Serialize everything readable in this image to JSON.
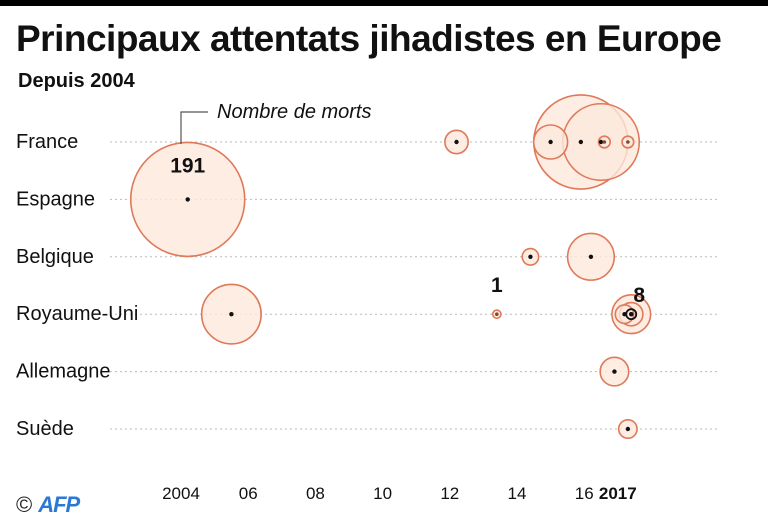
{
  "header": {
    "title": "Principaux attentats jihadistes en Europe",
    "subtitle": "Depuis 2004"
  },
  "credit": {
    "copyright_symbol": "©",
    "logo_text": "AFP"
  },
  "colors": {
    "bubble_fill": "#fde8dc",
    "bubble_stroke": "#e0795a",
    "text": "#111111",
    "grid_dots": "#bbbbbb"
  },
  "chart_data": {
    "type": "scatter",
    "size_encoding": "Nombre de morts",
    "size_legend_label": "Nombre de morts",
    "x_ticks": [
      {
        "year": 2004,
        "label": "2004"
      },
      {
        "year": 2006,
        "label": "06"
      },
      {
        "year": 2008,
        "label": "08"
      },
      {
        "year": 2010,
        "label": "10"
      },
      {
        "year": 2012,
        "label": "12"
      },
      {
        "year": 2014,
        "label": "14"
      },
      {
        "year": 2016,
        "label": "16"
      },
      {
        "year": 2017,
        "label": "2017"
      }
    ],
    "xlim": [
      2004,
      2017.6
    ],
    "rows": [
      "France",
      "Espagne",
      "Belgique",
      "Royaume-Uni",
      "Allemagne",
      "Suède"
    ],
    "grid": "dotted horizontal lines per country",
    "annotations": [
      {
        "label": "191",
        "country": "Espagne",
        "x": 2004.2
      },
      {
        "label": "1",
        "country": "Royaume-Uni",
        "x": 2013.4
      },
      {
        "label": "8",
        "country": "Royaume-Uni",
        "x": 2017.4
      }
    ],
    "points": [
      {
        "country": "France",
        "x": 2012.2,
        "value": 8
      },
      {
        "country": "France",
        "x": 2015.0,
        "value": 17
      },
      {
        "country": "France",
        "x": 2015.9,
        "value": 130
      },
      {
        "country": "France",
        "x": 2016.5,
        "value": 86
      },
      {
        "country": "France",
        "x": 2016.6,
        "value": 2
      },
      {
        "country": "France",
        "x": 2017.3,
        "value": 2
      },
      {
        "country": "Espagne",
        "x": 2004.2,
        "value": 191
      },
      {
        "country": "Belgique",
        "x": 2014.4,
        "value": 4
      },
      {
        "country": "Belgique",
        "x": 2016.2,
        "value": 32
      },
      {
        "country": "Royaume-Uni",
        "x": 2005.5,
        "value": 52
      },
      {
        "country": "Royaume-Uni",
        "x": 2013.4,
        "value": 1
      },
      {
        "country": "Royaume-Uni",
        "x": 2017.2,
        "value": 5
      },
      {
        "country": "Royaume-Uni",
        "x": 2017.4,
        "value": 22
      },
      {
        "country": "Royaume-Uni",
        "x": 2017.4,
        "value": 8
      },
      {
        "country": "Allemagne",
        "x": 2016.9,
        "value": 12
      },
      {
        "country": "Suède",
        "x": 2017.3,
        "value": 5
      }
    ]
  }
}
